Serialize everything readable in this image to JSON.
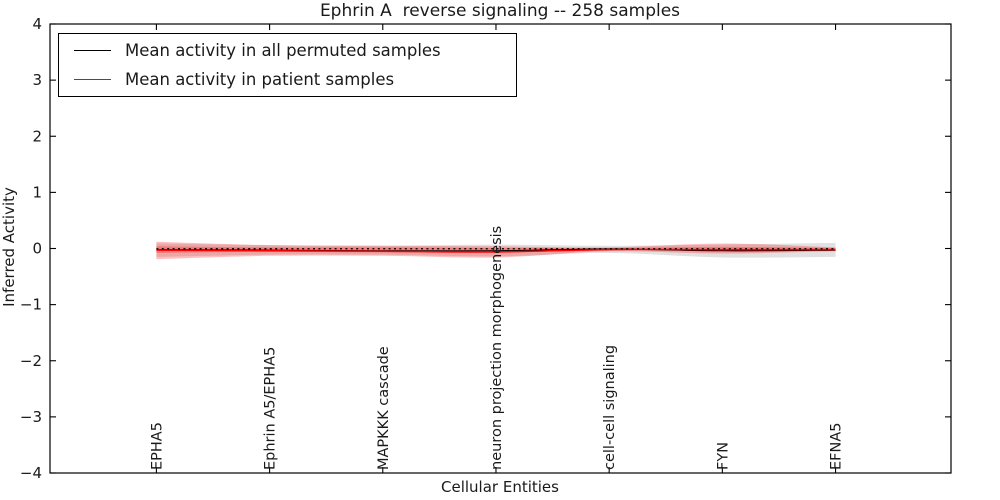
{
  "figure": {
    "background": "#ffffff"
  },
  "chart_data": {
    "type": "line",
    "title": "Ephrin A  reverse signaling -- 258 samples",
    "xlabel": "Cellular Entities",
    "ylabel": "Inferred Activity",
    "categories": [
      "EPHA5",
      "Ephrin A5/EPHA5",
      "MAPKKK cascade",
      "neuron projection morphogenesis",
      "cell-cell signaling",
      "FYN",
      "EFNA5"
    ],
    "x": [
      0,
      1,
      2,
      3,
      4,
      5,
      6
    ],
    "xlim": [
      -0.94,
      7.02
    ],
    "ylim": [
      -4,
      4
    ],
    "yticks": [
      4,
      3,
      2,
      1,
      0,
      -1,
      -2,
      -3,
      -4
    ],
    "ytick_labels": [
      "4",
      "3",
      "2",
      "1",
      "0",
      "−1",
      "−2",
      "−3",
      "−4"
    ],
    "grid": false,
    "legend_position": "upper left",
    "zero_line": {
      "y": -0.005,
      "style": "dashed",
      "color": "#000000"
    },
    "series": [
      {
        "name": "Mean activity in all permuted samples",
        "color": "#000000",
        "line_width": 1.1,
        "values": [
          -0.02,
          -0.03,
          -0.04,
          -0.04,
          -0.01,
          -0.04,
          -0.03
        ],
        "band_upper": [
          0.09,
          0.06,
          0.05,
          0.07,
          0.05,
          0.07,
          0.1
        ],
        "band_lower": [
          -0.15,
          -0.11,
          -0.11,
          -0.14,
          -0.08,
          -0.16,
          -0.15
        ],
        "band_color": "rgba(120,120,120,0.22)"
      },
      {
        "name": "Mean activity in patient samples",
        "color": "#ff0000",
        "line_width": 1.4,
        "values": [
          -0.03,
          -0.04,
          -0.05,
          -0.06,
          -0.02,
          -0.02,
          -0.02
        ],
        "band_upper": [
          0.12,
          0.06,
          0.05,
          0.04,
          0.02,
          0.09,
          0.02
        ],
        "band_lower": [
          -0.19,
          -0.13,
          -0.13,
          -0.16,
          -0.05,
          -0.09,
          -0.05
        ],
        "band_color": "rgba(255,20,20,0.28)",
        "inner_band_upper": [
          0.04,
          0.02,
          0.02,
          0.01,
          0.01,
          0.03,
          0.01
        ],
        "inner_band_lower": [
          -0.08,
          -0.06,
          -0.07,
          -0.08,
          -0.03,
          -0.04,
          -0.03
        ],
        "inner_band_color": "rgba(255,20,20,0.30)"
      }
    ],
    "legend": [
      {
        "label": "Mean activity in all permuted samples",
        "color": "#000000"
      },
      {
        "label": "Mean activity in patient samples",
        "color": "#ff0000"
      }
    ]
  }
}
